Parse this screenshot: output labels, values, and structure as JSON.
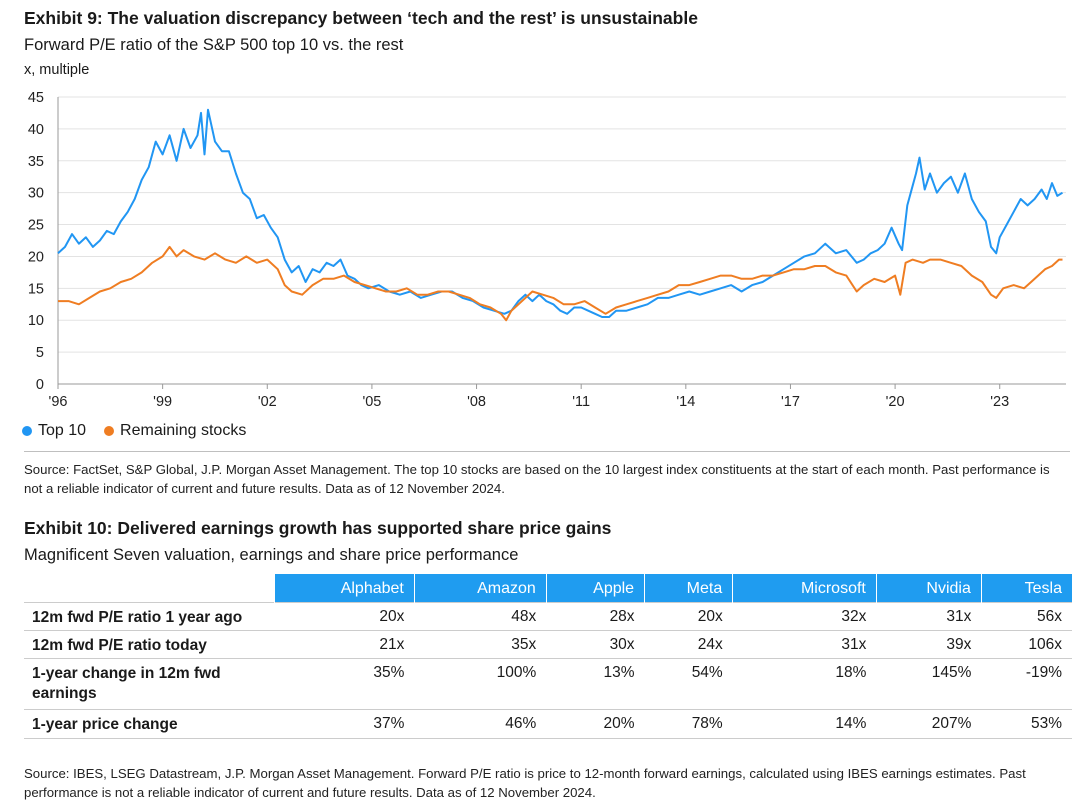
{
  "exhibit9": {
    "title": "Exhibit 9: The valuation discrepancy between ‘tech and the rest’ is unsustainable",
    "subtitle": "Forward P/E ratio of the S&P 500 top 10 vs. the rest",
    "unit": "x, multiple",
    "source": "Source: FactSet, S&P Global, J.P. Morgan Asset Management. The top 10 stocks are based on the 10 largest index constituents at the start of each month. Past performance is not a reliable indicator of current and future results. Data as of 12 November 2024."
  },
  "chart_data": {
    "type": "line",
    "title": "Forward P/E ratio of the S&P 500 top 10 vs. the rest",
    "ylabel": "x, multiple",
    "xlabel": "",
    "xlim": [
      1996.0,
      2024.9
    ],
    "ylim": [
      0,
      45
    ],
    "yticks": [
      0,
      5,
      10,
      15,
      20,
      25,
      30,
      35,
      40,
      45
    ],
    "xticks": [
      {
        "value": 1996,
        "label": "'96"
      },
      {
        "value": 1999,
        "label": "'99"
      },
      {
        "value": 2002,
        "label": "'02"
      },
      {
        "value": 2005,
        "label": "'05"
      },
      {
        "value": 2008,
        "label": "'08"
      },
      {
        "value": 2011,
        "label": "'11"
      },
      {
        "value": 2014,
        "label": "'14"
      },
      {
        "value": 2017,
        "label": "'17"
      },
      {
        "value": 2020,
        "label": "'20"
      },
      {
        "value": 2023,
        "label": "'23"
      }
    ],
    "grid": true,
    "legend_position": "bottom-left",
    "series": [
      {
        "name": "Top 10",
        "color": "#2196f3",
        "points": [
          [
            1996.0,
            20.5
          ],
          [
            1996.2,
            21.5
          ],
          [
            1996.4,
            23.5
          ],
          [
            1996.6,
            22.0
          ],
          [
            1996.8,
            23.0
          ],
          [
            1997.0,
            21.5
          ],
          [
            1997.2,
            22.5
          ],
          [
            1997.4,
            24.0
          ],
          [
            1997.6,
            23.5
          ],
          [
            1997.8,
            25.5
          ],
          [
            1998.0,
            27.0
          ],
          [
            1998.2,
            29.0
          ],
          [
            1998.4,
            32.0
          ],
          [
            1998.6,
            34.0
          ],
          [
            1998.8,
            38.0
          ],
          [
            1999.0,
            36.0
          ],
          [
            1999.2,
            39.0
          ],
          [
            1999.4,
            35.0
          ],
          [
            1999.6,
            40.0
          ],
          [
            1999.8,
            37.0
          ],
          [
            2000.0,
            39.0
          ],
          [
            2000.1,
            42.5
          ],
          [
            2000.2,
            36.0
          ],
          [
            2000.3,
            43.0
          ],
          [
            2000.5,
            38.0
          ],
          [
            2000.7,
            36.5
          ],
          [
            2000.9,
            36.5
          ],
          [
            2001.1,
            33.0
          ],
          [
            2001.3,
            30.0
          ],
          [
            2001.5,
            29.0
          ],
          [
            2001.7,
            26.0
          ],
          [
            2001.9,
            26.5
          ],
          [
            2002.1,
            24.5
          ],
          [
            2002.3,
            23.0
          ],
          [
            2002.5,
            19.5
          ],
          [
            2002.7,
            17.5
          ],
          [
            2002.9,
            18.5
          ],
          [
            2003.1,
            16.0
          ],
          [
            2003.3,
            18.0
          ],
          [
            2003.5,
            17.5
          ],
          [
            2003.7,
            19.0
          ],
          [
            2003.9,
            18.5
          ],
          [
            2004.1,
            19.5
          ],
          [
            2004.3,
            17.0
          ],
          [
            2004.5,
            16.5
          ],
          [
            2004.7,
            15.5
          ],
          [
            2004.9,
            15.0
          ],
          [
            2005.2,
            15.5
          ],
          [
            2005.5,
            14.5
          ],
          [
            2005.8,
            14.0
          ],
          [
            2006.1,
            14.5
          ],
          [
            2006.4,
            13.5
          ],
          [
            2006.7,
            14.0
          ],
          [
            2007.0,
            14.5
          ],
          [
            2007.3,
            14.5
          ],
          [
            2007.6,
            13.5
          ],
          [
            2007.9,
            13.0
          ],
          [
            2008.2,
            12.0
          ],
          [
            2008.5,
            11.5
          ],
          [
            2008.8,
            11.0
          ],
          [
            2009.0,
            11.5
          ],
          [
            2009.2,
            13.0
          ],
          [
            2009.4,
            14.0
          ],
          [
            2009.6,
            13.0
          ],
          [
            2009.8,
            14.0
          ],
          [
            2010.0,
            13.0
          ],
          [
            2010.2,
            12.5
          ],
          [
            2010.4,
            11.5
          ],
          [
            2010.6,
            11.0
          ],
          [
            2010.8,
            12.0
          ],
          [
            2011.0,
            12.0
          ],
          [
            2011.2,
            11.5
          ],
          [
            2011.4,
            11.0
          ],
          [
            2011.6,
            10.5
          ],
          [
            2011.8,
            10.5
          ],
          [
            2012.0,
            11.5
          ],
          [
            2012.3,
            11.5
          ],
          [
            2012.6,
            12.0
          ],
          [
            2012.9,
            12.5
          ],
          [
            2013.2,
            13.5
          ],
          [
            2013.5,
            13.5
          ],
          [
            2013.8,
            14.0
          ],
          [
            2014.1,
            14.5
          ],
          [
            2014.4,
            14.0
          ],
          [
            2014.7,
            14.5
          ],
          [
            2015.0,
            15.0
          ],
          [
            2015.3,
            15.5
          ],
          [
            2015.6,
            14.5
          ],
          [
            2015.9,
            15.5
          ],
          [
            2016.2,
            16.0
          ],
          [
            2016.5,
            17.0
          ],
          [
            2016.8,
            18.0
          ],
          [
            2017.1,
            19.0
          ],
          [
            2017.4,
            20.0
          ],
          [
            2017.7,
            20.5
          ],
          [
            2018.0,
            22.0
          ],
          [
            2018.3,
            20.5
          ],
          [
            2018.6,
            21.0
          ],
          [
            2018.9,
            19.0
          ],
          [
            2019.1,
            19.5
          ],
          [
            2019.3,
            20.5
          ],
          [
            2019.5,
            21.0
          ],
          [
            2019.7,
            22.0
          ],
          [
            2019.9,
            24.5
          ],
          [
            2020.1,
            22.0
          ],
          [
            2020.2,
            21.0
          ],
          [
            2020.35,
            28.0
          ],
          [
            2020.5,
            31.0
          ],
          [
            2020.6,
            33.0
          ],
          [
            2020.7,
            35.5
          ],
          [
            2020.85,
            30.5
          ],
          [
            2021.0,
            33.0
          ],
          [
            2021.2,
            30.0
          ],
          [
            2021.4,
            31.5
          ],
          [
            2021.6,
            32.5
          ],
          [
            2021.8,
            30.0
          ],
          [
            2022.0,
            33.0
          ],
          [
            2022.2,
            29.0
          ],
          [
            2022.4,
            27.0
          ],
          [
            2022.6,
            25.5
          ],
          [
            2022.75,
            21.5
          ],
          [
            2022.9,
            20.5
          ],
          [
            2023.0,
            23.0
          ],
          [
            2023.2,
            25.0
          ],
          [
            2023.4,
            27.0
          ],
          [
            2023.6,
            29.0
          ],
          [
            2023.8,
            28.0
          ],
          [
            2024.0,
            29.0
          ],
          [
            2024.2,
            30.5
          ],
          [
            2024.35,
            29.0
          ],
          [
            2024.5,
            31.5
          ],
          [
            2024.65,
            29.5
          ],
          [
            2024.8,
            30.0
          ]
        ]
      },
      {
        "name": "Remaining stocks",
        "color": "#ef7d22",
        "points": [
          [
            1996.0,
            13.0
          ],
          [
            1996.3,
            13.0
          ],
          [
            1996.6,
            12.5
          ],
          [
            1996.9,
            13.5
          ],
          [
            1997.2,
            14.5
          ],
          [
            1997.5,
            15.0
          ],
          [
            1997.8,
            16.0
          ],
          [
            1998.1,
            16.5
          ],
          [
            1998.4,
            17.5
          ],
          [
            1998.7,
            19.0
          ],
          [
            1999.0,
            20.0
          ],
          [
            1999.2,
            21.5
          ],
          [
            1999.4,
            20.0
          ],
          [
            1999.6,
            21.0
          ],
          [
            1999.9,
            20.0
          ],
          [
            2000.2,
            19.5
          ],
          [
            2000.5,
            20.5
          ],
          [
            2000.8,
            19.5
          ],
          [
            2001.1,
            19.0
          ],
          [
            2001.4,
            20.0
          ],
          [
            2001.7,
            19.0
          ],
          [
            2002.0,
            19.5
          ],
          [
            2002.3,
            18.0
          ],
          [
            2002.5,
            15.5
          ],
          [
            2002.7,
            14.5
          ],
          [
            2003.0,
            14.0
          ],
          [
            2003.3,
            15.5
          ],
          [
            2003.6,
            16.5
          ],
          [
            2003.9,
            16.5
          ],
          [
            2004.2,
            17.0
          ],
          [
            2004.5,
            16.0
          ],
          [
            2004.8,
            15.5
          ],
          [
            2005.1,
            15.0
          ],
          [
            2005.4,
            14.5
          ],
          [
            2005.7,
            14.5
          ],
          [
            2006.0,
            15.0
          ],
          [
            2006.3,
            14.0
          ],
          [
            2006.6,
            14.0
          ],
          [
            2006.9,
            14.5
          ],
          [
            2007.2,
            14.5
          ],
          [
            2007.5,
            14.0
          ],
          [
            2007.8,
            13.5
          ],
          [
            2008.1,
            12.5
          ],
          [
            2008.4,
            12.0
          ],
          [
            2008.7,
            11.0
          ],
          [
            2008.85,
            10.0
          ],
          [
            2009.0,
            11.5
          ],
          [
            2009.3,
            13.0
          ],
          [
            2009.6,
            14.5
          ],
          [
            2009.9,
            14.0
          ],
          [
            2010.2,
            13.5
          ],
          [
            2010.5,
            12.5
          ],
          [
            2010.8,
            12.5
          ],
          [
            2011.1,
            13.0
          ],
          [
            2011.4,
            12.0
          ],
          [
            2011.7,
            11.0
          ],
          [
            2012.0,
            12.0
          ],
          [
            2012.3,
            12.5
          ],
          [
            2012.6,
            13.0
          ],
          [
            2012.9,
            13.5
          ],
          [
            2013.2,
            14.0
          ],
          [
            2013.5,
            14.5
          ],
          [
            2013.8,
            15.5
          ],
          [
            2014.1,
            15.5
          ],
          [
            2014.4,
            16.0
          ],
          [
            2014.7,
            16.5
          ],
          [
            2015.0,
            17.0
          ],
          [
            2015.3,
            17.0
          ],
          [
            2015.6,
            16.5
          ],
          [
            2015.9,
            16.5
          ],
          [
            2016.2,
            17.0
          ],
          [
            2016.5,
            17.0
          ],
          [
            2016.8,
            17.5
          ],
          [
            2017.1,
            18.0
          ],
          [
            2017.4,
            18.0
          ],
          [
            2017.7,
            18.5
          ],
          [
            2018.0,
            18.5
          ],
          [
            2018.3,
            17.5
          ],
          [
            2018.6,
            17.0
          ],
          [
            2018.9,
            14.5
          ],
          [
            2019.1,
            15.5
          ],
          [
            2019.4,
            16.5
          ],
          [
            2019.7,
            16.0
          ],
          [
            2020.0,
            17.0
          ],
          [
            2020.15,
            14.0
          ],
          [
            2020.3,
            19.0
          ],
          [
            2020.5,
            19.5
          ],
          [
            2020.8,
            19.0
          ],
          [
            2021.0,
            19.5
          ],
          [
            2021.3,
            19.5
          ],
          [
            2021.6,
            19.0
          ],
          [
            2021.9,
            18.5
          ],
          [
            2022.2,
            17.0
          ],
          [
            2022.5,
            16.0
          ],
          [
            2022.75,
            14.0
          ],
          [
            2022.9,
            13.5
          ],
          [
            2023.1,
            15.0
          ],
          [
            2023.4,
            15.5
          ],
          [
            2023.7,
            15.0
          ],
          [
            2023.9,
            16.0
          ],
          [
            2024.1,
            17.0
          ],
          [
            2024.3,
            18.0
          ],
          [
            2024.5,
            18.5
          ],
          [
            2024.7,
            19.5
          ],
          [
            2024.8,
            19.5
          ]
        ]
      }
    ]
  },
  "legend": {
    "items": [
      {
        "label": "Top 10",
        "color": "#2196f3"
      },
      {
        "label": "Remaining stocks",
        "color": "#ef7d22"
      }
    ]
  },
  "exhibit10": {
    "title": "Exhibit 10: Delivered earnings growth has supported share price gains",
    "subtitle": "Magnificent Seven valuation, earnings and share price performance",
    "columns": [
      "Alphabet",
      "Amazon",
      "Apple",
      "Meta",
      "Microsoft",
      "Nvidia",
      "Tesla"
    ],
    "rows": [
      {
        "label": "12m fwd P/E ratio 1 year ago",
        "values": [
          "20x",
          "48x",
          "28x",
          "20x",
          "32x",
          "31x",
          "56x"
        ]
      },
      {
        "label": "12m fwd P/E ratio today",
        "values": [
          "21x",
          "35x",
          "30x",
          "24x",
          "31x",
          "39x",
          "106x"
        ]
      },
      {
        "label": "1-year change in 12m fwd earnings",
        "values": [
          "35%",
          "100%",
          "13%",
          "54%",
          "18%",
          "145%",
          "-19%"
        ]
      },
      {
        "label": "1-year price change",
        "values": [
          "37%",
          "46%",
          "20%",
          "78%",
          "14%",
          "207%",
          "53%"
        ]
      }
    ],
    "source": "Source: IBES, LSEG Datastream, J.P. Morgan Asset Management. Forward P/E ratio is price to 12-month forward earnings, calculated using IBES earnings estimates. Past performance is not a reliable indicator of current and future results. Data as of 12 November 2024."
  }
}
